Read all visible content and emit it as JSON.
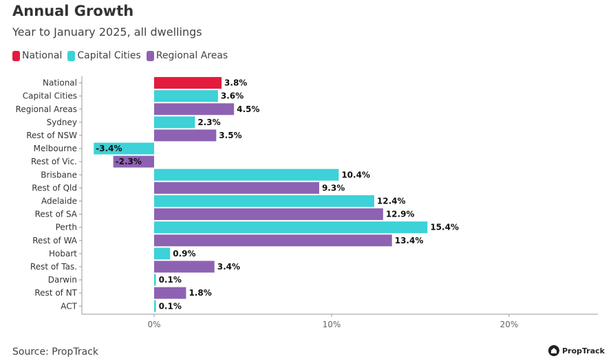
{
  "header": {
    "title": "Annual Growth",
    "subtitle": "Year to January 2025, all dwellings"
  },
  "legend": [
    {
      "label": "National",
      "color": "#e31b3d"
    },
    {
      "label": "Capital Cities",
      "color": "#3dd1d8"
    },
    {
      "label": "Regional Areas",
      "color": "#8e62b3"
    }
  ],
  "footer": {
    "source": "Source: PropTrack",
    "brand": "PropTrack"
  },
  "chart_data": {
    "type": "bar",
    "orientation": "horizontal",
    "title": "Annual Growth",
    "subtitle": "Year to January 2025, all dwellings",
    "xlabel": "",
    "ylabel": "",
    "xlim": [
      -4,
      25
    ],
    "xticks": [
      0,
      10,
      20
    ],
    "xtick_labels": [
      "0%",
      "10%",
      "20%"
    ],
    "grid": false,
    "legend_position": "top-left",
    "categories": [
      "National",
      "Capital Cities",
      "Regional Areas",
      "Sydney",
      "Rest of NSW",
      "Melbourne",
      "Rest of Vic.",
      "Brisbane",
      "Rest of Qld",
      "Adelaide",
      "Rest of SA",
      "Perth",
      "Rest of WA",
      "Hobart",
      "Rest of Tas.",
      "Darwin",
      "Rest of NT",
      "ACT"
    ],
    "values": [
      3.8,
      3.6,
      4.5,
      2.3,
      3.5,
      -3.4,
      -2.3,
      10.4,
      9.3,
      12.4,
      12.9,
      15.4,
      13.4,
      0.9,
      3.4,
      0.1,
      1.8,
      0.1
    ],
    "value_labels": [
      "3.8%",
      "3.6%",
      "4.5%",
      "2.3%",
      "3.5%",
      "-3.4%",
      "-2.3%",
      "10.4%",
      "9.3%",
      "12.4%",
      "12.9%",
      "15.4%",
      "13.4%",
      "0.9%",
      "3.4%",
      "0.1%",
      "1.8%",
      "0.1%"
    ],
    "groups": [
      "National",
      "Capital Cities",
      "Regional Areas",
      "Capital Cities",
      "Regional Areas",
      "Capital Cities",
      "Regional Areas",
      "Capital Cities",
      "Regional Areas",
      "Capital Cities",
      "Regional Areas",
      "Capital Cities",
      "Regional Areas",
      "Capital Cities",
      "Regional Areas",
      "Capital Cities",
      "Regional Areas",
      "Capital Cities"
    ]
  }
}
